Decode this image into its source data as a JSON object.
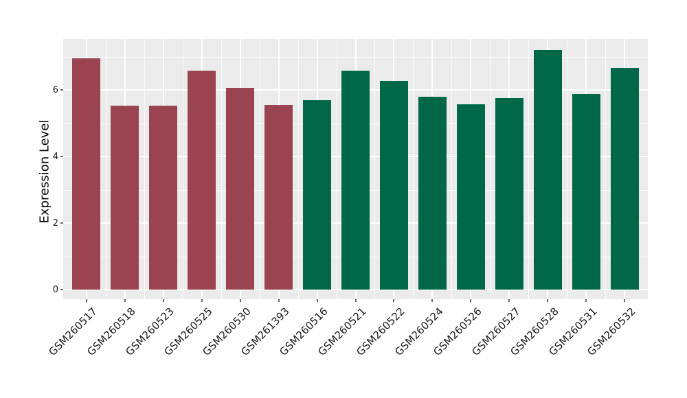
{
  "chart_data": {
    "type": "bar",
    "title": "",
    "xlabel": "",
    "ylabel": "Expression Level",
    "categories": [
      "GSM260517",
      "GSM260518",
      "GSM260523",
      "GSM260525",
      "GSM260530",
      "GSM261393",
      "GSM260516",
      "GSM260521",
      "GSM260522",
      "GSM260524",
      "GSM260526",
      "GSM260527",
      "GSM260528",
      "GSM260531",
      "GSM260532"
    ],
    "values": [
      6.95,
      5.53,
      5.53,
      6.58,
      6.07,
      5.55,
      5.7,
      6.58,
      6.27,
      5.79,
      5.57,
      5.75,
      7.2,
      5.88,
      6.67
    ],
    "bar_colors": [
      "#9A4451",
      "#9A4451",
      "#9A4451",
      "#9A4451",
      "#9A4451",
      "#9A4451",
      "#006848",
      "#006848",
      "#006848",
      "#006848",
      "#006848",
      "#006848",
      "#006848",
      "#006848",
      "#006848"
    ],
    "group_colors": {
      "maroon_group": "#9A4451",
      "green_group": "#006848"
    },
    "yticks": [
      "0",
      "2",
      "4",
      "6"
    ],
    "ytick_values": [
      0,
      2,
      4,
      6
    ],
    "minor_ytick_values": [
      1,
      3,
      5,
      7
    ],
    "ylim": [
      -0.36,
      7.56
    ],
    "panel_background": "#EBEBEB",
    "grid_color": "#FFFFFF",
    "grid": "major and minor, horizontal and vertical",
    "legend_position": "none",
    "x_label_rotation_deg": 45
  }
}
